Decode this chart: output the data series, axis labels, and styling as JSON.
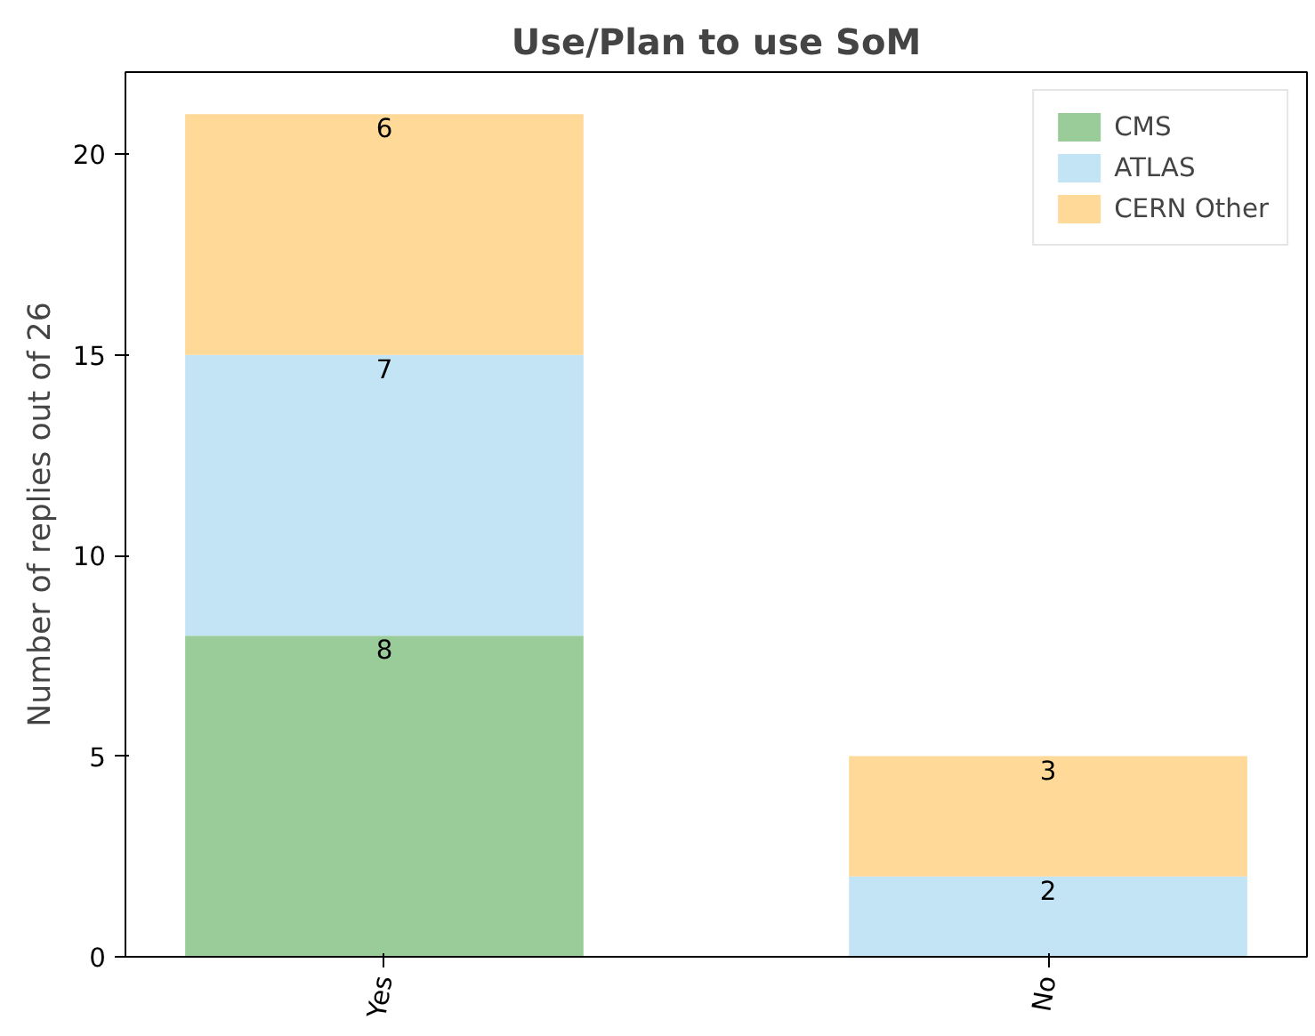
{
  "chart_data": {
    "type": "bar",
    "title": "Use/Plan to use SoM",
    "ylabel": "Number of replies out of 26",
    "categories": [
      "Yes",
      "No"
    ],
    "stacked": true,
    "series": [
      {
        "name": "CMS",
        "color": "#99cc99",
        "values": [
          8,
          0
        ],
        "value_labels": [
          "8",
          null
        ]
      },
      {
        "name": "ATLAS",
        "color": "#c2e4f4",
        "values": [
          7,
          2
        ],
        "value_labels": [
          "7",
          "2"
        ]
      },
      {
        "name": "CERN Other",
        "color": "#fed998",
        "values": [
          6,
          3
        ],
        "value_labels": [
          "6",
          "3"
        ]
      }
    ],
    "ylim": [
      0,
      22.05
    ],
    "yticks": [
      0,
      5,
      10,
      15,
      20
    ],
    "grid": false,
    "legend": "top right"
  }
}
